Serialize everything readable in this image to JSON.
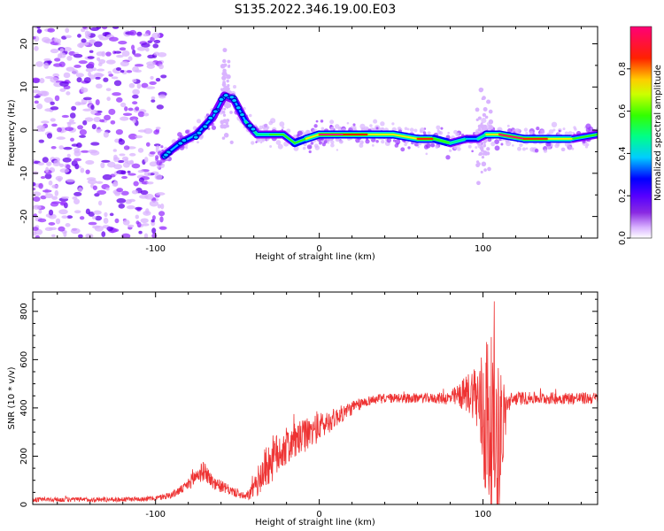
{
  "title": "S135.2022.346.19.00.E03",
  "colors": {
    "snr_line": "#ee3333",
    "axis": "#000000",
    "background": "#ffffff"
  },
  "chart_data": [
    {
      "type": "heatmap",
      "xlabel": "Height of straight line (km)",
      "ylabel": "Frequency (Hz)",
      "xlim": [
        -175,
        170
      ],
      "ylim": [
        -25,
        24
      ],
      "xticks": [
        -100,
        0,
        100
      ],
      "yticks": [
        -20,
        -10,
        0,
        10,
        20
      ],
      "colorbar": {
        "label": "Normalized spectral amplitude",
        "range": [
          0,
          1
        ],
        "ticks": [
          "0.0",
          "0.2",
          "0.4",
          "0.6",
          "0.8"
        ],
        "colormap": [
          "#ffffff",
          "#7700ff",
          "#0000ff",
          "#00ffff",
          "#00ff00",
          "#ffff00",
          "#ff0000",
          "#ff0099"
        ]
      },
      "ridge": {
        "x": [
          -95,
          -85,
          -75,
          -65,
          -58,
          -52,
          -45,
          -38,
          -30,
          -22,
          -15,
          -8,
          0,
          15,
          30,
          45,
          60,
          70,
          80,
          90,
          97,
          102,
          110,
          125,
          140,
          155,
          170
        ],
        "freq": [
          -6,
          -3,
          -1,
          3,
          8,
          7,
          2,
          -1,
          -1,
          -1,
          -3,
          -2,
          -1,
          -1,
          -1,
          -1,
          -2,
          -2,
          -3,
          -2,
          -2,
          -1,
          -1,
          -2,
          -2,
          -2,
          -1
        ],
        "amplitude": [
          0.35,
          0.35,
          0.35,
          0.35,
          0.3,
          0.35,
          0.35,
          0.45,
          0.5,
          0.5,
          0.5,
          0.55,
          0.8,
          0.85,
          0.7,
          0.55,
          0.75,
          0.7,
          0.45,
          0.4,
          0.35,
          0.55,
          0.8,
          0.85,
          0.7,
          0.55,
          0.45
        ]
      }
    },
    {
      "type": "line",
      "xlabel": "Height of straight line (km)",
      "ylabel": "SNR (10 * v/v)",
      "xlim": [
        -175,
        170
      ],
      "ylim": [
        0,
        880
      ],
      "xticks": [
        -100,
        0,
        100
      ],
      "yticks": [
        0,
        200,
        400,
        600,
        800
      ],
      "series": [
        {
          "x": [
            -175,
            -150,
            -125,
            -100,
            -90,
            -82,
            -75,
            -70,
            -65,
            -55,
            -45,
            -40,
            -35,
            -30,
            -20,
            -10,
            0,
            10,
            20,
            30,
            40,
            50,
            60,
            70,
            80,
            85,
            90,
            95,
            98,
            102,
            106,
            110,
            115,
            120,
            130,
            140,
            150,
            160,
            170
          ],
          "y": [
            20,
            20,
            20,
            25,
            40,
            70,
            120,
            140,
            90,
            60,
            30,
            60,
            130,
            180,
            240,
            280,
            320,
            360,
            400,
            430,
            440,
            440,
            440,
            440,
            440,
            450,
            460,
            470,
            400,
            350,
            300,
            260,
            420,
            440,
            440,
            440,
            440,
            440,
            440
          ],
          "noise": [
            10,
            10,
            10,
            10,
            15,
            20,
            40,
            40,
            30,
            20,
            15,
            40,
            80,
            100,
            80,
            70,
            60,
            40,
            30,
            20,
            20,
            20,
            20,
            20,
            30,
            50,
            80,
            120,
            200,
            400,
            380,
            320,
            40,
            30,
            25,
            25,
            25,
            25,
            25
          ]
        }
      ]
    }
  ]
}
